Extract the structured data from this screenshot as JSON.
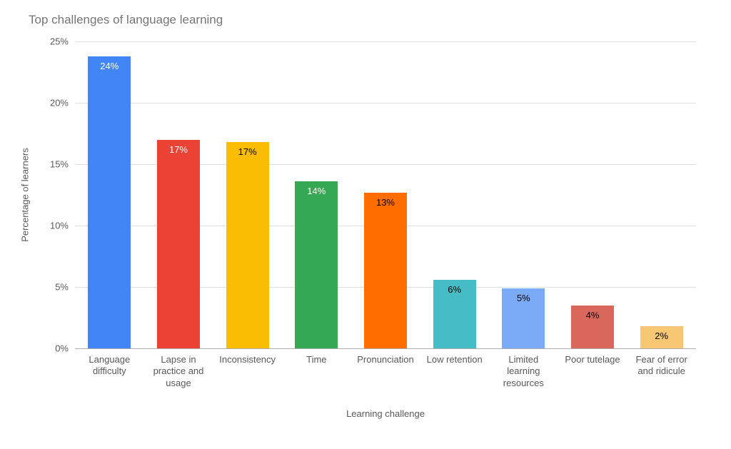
{
  "chart": {
    "type": "bar",
    "title": "Top challenges of language learning",
    "title_color": "#757575",
    "title_fontsize": 17,
    "background_color": "#ffffff",
    "grid_color": "#e0e0e0",
    "baseline_color": "#b0b0b0",
    "axis_label_color": "#595959",
    "axis_label_fontsize": 13,
    "tick_fontsize": 13,
    "y_axis": {
      "title": "Percentage of learners",
      "min": 0,
      "max": 25,
      "tick_step": 5,
      "tick_suffix": "%",
      "ticks": [
        "0%",
        "5%",
        "10%",
        "15%",
        "20%",
        "25%"
      ]
    },
    "x_axis": {
      "title": "Learning challenge"
    },
    "bar_width_ratio": 0.62,
    "categories": [
      "Language difficulty",
      "Lapse in practice and usage",
      "Inconsistency",
      "Time",
      "Pronunciation",
      "Low retention",
      "Limited learning resources",
      "Poor tutelage",
      "Fear of error and ridicule"
    ],
    "category_multiline": [
      [
        "Language",
        "difficulty"
      ],
      [
        "Lapse in",
        "practice and",
        "usage"
      ],
      [
        "Inconsistency"
      ],
      [
        "Time"
      ],
      [
        "Pronunciation"
      ],
      [
        "Low retention"
      ],
      [
        "Limited",
        "learning",
        "resources"
      ],
      [
        "Poor tutelage"
      ],
      [
        "Fear of error",
        "and ridicule"
      ]
    ],
    "values": [
      23.8,
      17.0,
      16.8,
      13.6,
      12.7,
      5.6,
      4.9,
      3.5,
      1.8
    ],
    "data_labels": [
      "24%",
      "17%",
      "17%",
      "14%",
      "13%",
      "6%",
      "5%",
      "4%",
      "2%"
    ],
    "data_label_fontsize": 13,
    "data_label_colors": [
      "#ffffff",
      "#ffffff",
      "#000000",
      "#ffffff",
      "#000000",
      "#000000",
      "#000000",
      "#000000",
      "#000000"
    ],
    "bar_colors": [
      "#4285f4",
      "#ea4335",
      "#fbbc04",
      "#34a853",
      "#ff6d01",
      "#46bdc6",
      "#7baaf7",
      "#d9675b",
      "#f7c774"
    ]
  }
}
